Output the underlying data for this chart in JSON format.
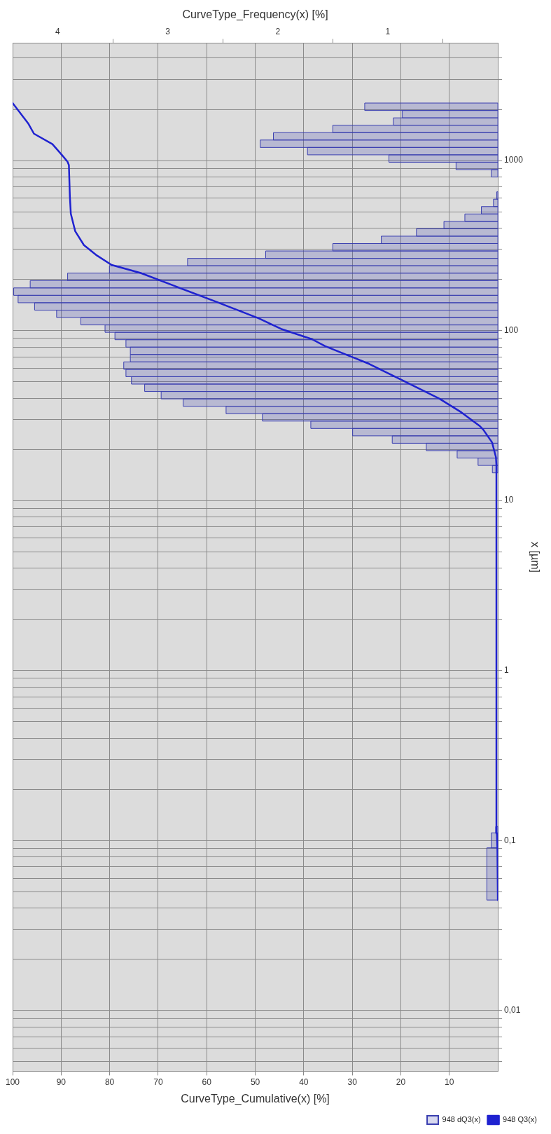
{
  "chart_data": {
    "type": "histogram",
    "orientation": "horizontal",
    "xlabel": "CurveType_Cumulative(x) [%]",
    "x2label": "CurveType_Frequency(x) [%]",
    "ylabel": "x [µm]",
    "log": "y",
    "grid": true,
    "legend": "bottom right",
    "marker": "none",
    "ylim": [
      0.0044,
      4900
    ],
    "yticks": [
      {
        "value": 0.005,
        "label": null
      },
      {
        "value": 0.006,
        "label": null
      },
      {
        "value": 0.007,
        "label": null
      },
      {
        "value": 0.008,
        "label": null
      },
      {
        "value": 0.009,
        "label": null
      },
      {
        "value": 0.01,
        "label": "0,01"
      },
      {
        "value": 0.02,
        "label": null
      },
      {
        "value": 0.03,
        "label": null
      },
      {
        "value": 0.04,
        "label": null
      },
      {
        "value": 0.05,
        "label": null
      },
      {
        "value": 0.06,
        "label": null
      },
      {
        "value": 0.07,
        "label": null
      },
      {
        "value": 0.08,
        "label": null
      },
      {
        "value": 0.09,
        "label": null
      },
      {
        "value": 0.1,
        "label": "0,1"
      },
      {
        "value": 0.2,
        "label": null
      },
      {
        "value": 0.3,
        "label": null
      },
      {
        "value": 0.4,
        "label": null
      },
      {
        "value": 0.5,
        "label": null
      },
      {
        "value": 0.6,
        "label": null
      },
      {
        "value": 0.7,
        "label": null
      },
      {
        "value": 0.8,
        "label": null
      },
      {
        "value": 0.9,
        "label": null
      },
      1,
      {
        "value": 2,
        "label": null
      },
      {
        "value": 3,
        "label": null
      },
      {
        "value": 4,
        "label": null
      },
      {
        "value": 5,
        "label": null
      },
      {
        "value": 6,
        "label": null
      },
      {
        "value": 7,
        "label": null
      },
      {
        "value": 8,
        "label": null
      },
      {
        "value": 9,
        "label": null
      },
      10,
      {
        "value": 20,
        "label": null
      },
      {
        "value": 30,
        "label": null
      },
      {
        "value": 40,
        "label": null
      },
      {
        "value": 50,
        "label": null
      },
      {
        "value": 60,
        "label": null
      },
      {
        "value": 70,
        "label": null
      },
      {
        "value": 80,
        "label": null
      },
      {
        "value": 90,
        "label": null
      },
      100,
      {
        "value": 200,
        "label": null
      },
      {
        "value": 300,
        "label": null
      },
      {
        "value": 400,
        "label": null
      },
      {
        "value": 500,
        "label": null
      },
      {
        "value": 600,
        "label": null
      },
      {
        "value": 700,
        "label": null
      },
      {
        "value": 800,
        "label": null
      },
      {
        "value": 900,
        "label": null
      },
      1000,
      {
        "value": 2000,
        "label": null
      },
      {
        "value": 3000,
        "label": null
      },
      {
        "value": 4000,
        "label": null
      }
    ],
    "xlim": [
      100,
      0
    ],
    "xticks": [
      100,
      90,
      80,
      70,
      60,
      50,
      40,
      30,
      20,
      10
    ],
    "x2lim": [
      4.41,
      0
    ],
    "x2ticks": [
      4,
      3,
      2,
      1
    ],
    "series": [
      {
        "type": "histogram",
        "name": "948 dQ3(x)",
        "color": "#3a3fb0",
        "axis": "x2",
        "bins": [
          0.0447,
          0.0906,
          0.111,
          0.121,
          14.55,
          16.09,
          17.78,
          19.66,
          21.73,
          24.02,
          26.55,
          29.34,
          32.43,
          35.85,
          39.63,
          43.8,
          48.42,
          53.52,
          59.16,
          65.38,
          72.28,
          79.89,
          88.31,
          97.61,
          107.9,
          119.3,
          131.8,
          145.7,
          161.1,
          178.1,
          196.8,
          217.6,
          240.4,
          265.8,
          293.8,
          324.8,
          358.9,
          396.8,
          438.5,
          484.8,
          535.8,
          592.3,
          654.6,
          799.8,
          884.1,
          977.2,
          1080,
          1194,
          1320,
          1459,
          1613,
          1782,
          1970,
          2178
        ],
        "values": [
          0.1,
          0.06,
          0.02,
          0,
          0.05,
          0.18,
          0.37,
          0.65,
          0.96,
          1.32,
          1.7,
          2.14,
          2.47,
          2.86,
          3.06,
          3.21,
          3.33,
          3.38,
          3.4,
          3.34,
          3.34,
          3.38,
          3.48,
          3.57,
          3.79,
          4.01,
          4.21,
          4.36,
          4.4,
          4.25,
          3.91,
          3.53,
          2.82,
          2.11,
          1.5,
          1.06,
          0.74,
          0.49,
          0.3,
          0.15,
          0.04,
          0.01,
          0,
          0.06,
          0.38,
          0.99,
          1.73,
          2.16,
          2.04,
          1.5,
          0.95,
          0.87,
          1.21
        ]
      },
      {
        "type": "line",
        "name": "948 Q3(x)",
        "color": "#1f22d0",
        "x": [
          0.0447,
          0.0906,
          0.11,
          0.121,
          14.55,
          16.2,
          18,
          22,
          26.1,
          27.4,
          33,
          39.8,
          50.4,
          63.6,
          80.9,
          88.9,
          102.3,
          118,
          149,
          180,
          218,
          243,
          276,
          318,
          384,
          486,
          615,
          940,
          986,
          1083,
          1248,
          1438,
          1655,
          2178
        ],
        "values": [
          0,
          0.1,
          0.2,
          0.3,
          0.3,
          0.3,
          0.4,
          1.2,
          3,
          3.7,
          7.5,
          12.1,
          19.3,
          26.5,
          35.6,
          38.3,
          44.7,
          49.3,
          58.4,
          66,
          73.6,
          79.6,
          82.6,
          85.3,
          87.1,
          88,
          88.2,
          88.4,
          88.7,
          89.9,
          91.8,
          95.6,
          96.8,
          100
        ]
      }
    ]
  }
}
